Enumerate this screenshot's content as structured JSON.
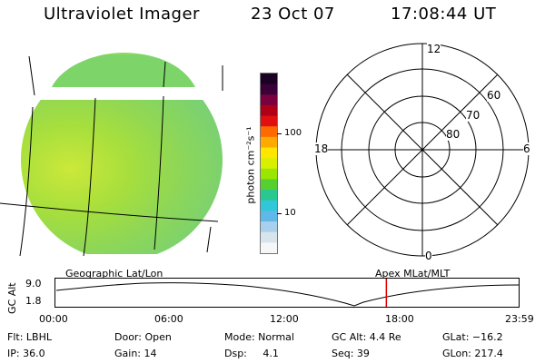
{
  "header": {
    "instrument": "Ultraviolet Imager",
    "date": "23 Oct 07",
    "time": "17:08:44 UT"
  },
  "colorbar": {
    "ticks": [
      "100",
      "10"
    ],
    "unit_label": "photon cm⁻²s⁻¹",
    "colors": [
      "#1a0022",
      "#3a0038",
      "#7a0040",
      "#b00018",
      "#e01010",
      "#ff6a00",
      "#ffaa00",
      "#ffe600",
      "#d8f000",
      "#9ae600",
      "#55d030",
      "#28c890",
      "#30c8d8",
      "#60b8e8",
      "#a8d0ec",
      "#d8e4ec",
      "#f4f6f8"
    ]
  },
  "polar": {
    "mlt_labels": {
      "top": "12",
      "left": "18",
      "right": "6",
      "bottom": "0"
    },
    "lat_labels": [
      "60",
      "70",
      "80"
    ]
  },
  "orbit_plot": {
    "ylabel": "GC Alt",
    "ytick_top": "9.0",
    "ytick_bottom": "1.8",
    "left_caption": "Geographic Lat/Lon",
    "right_caption": "Apex  MLat/MLT",
    "x_ticks": [
      "00:00",
      "06:00",
      "12:00",
      "18:00",
      "23:59"
    ],
    "current_time_fraction": 0.7144
  },
  "info": {
    "flt": "Flt: LBHL",
    "door": "Door: Open",
    "mode": "Mode: Normal",
    "gc_alt": "GC Alt: 4.4 Re",
    "glat": "GLat: −16.2",
    "ip": "IP: 36.0",
    "gain": "Gain: 14",
    "dsp": "Dsp:     4.1",
    "seq": "Seq: 39",
    "glon": "GLon: 217.4"
  }
}
